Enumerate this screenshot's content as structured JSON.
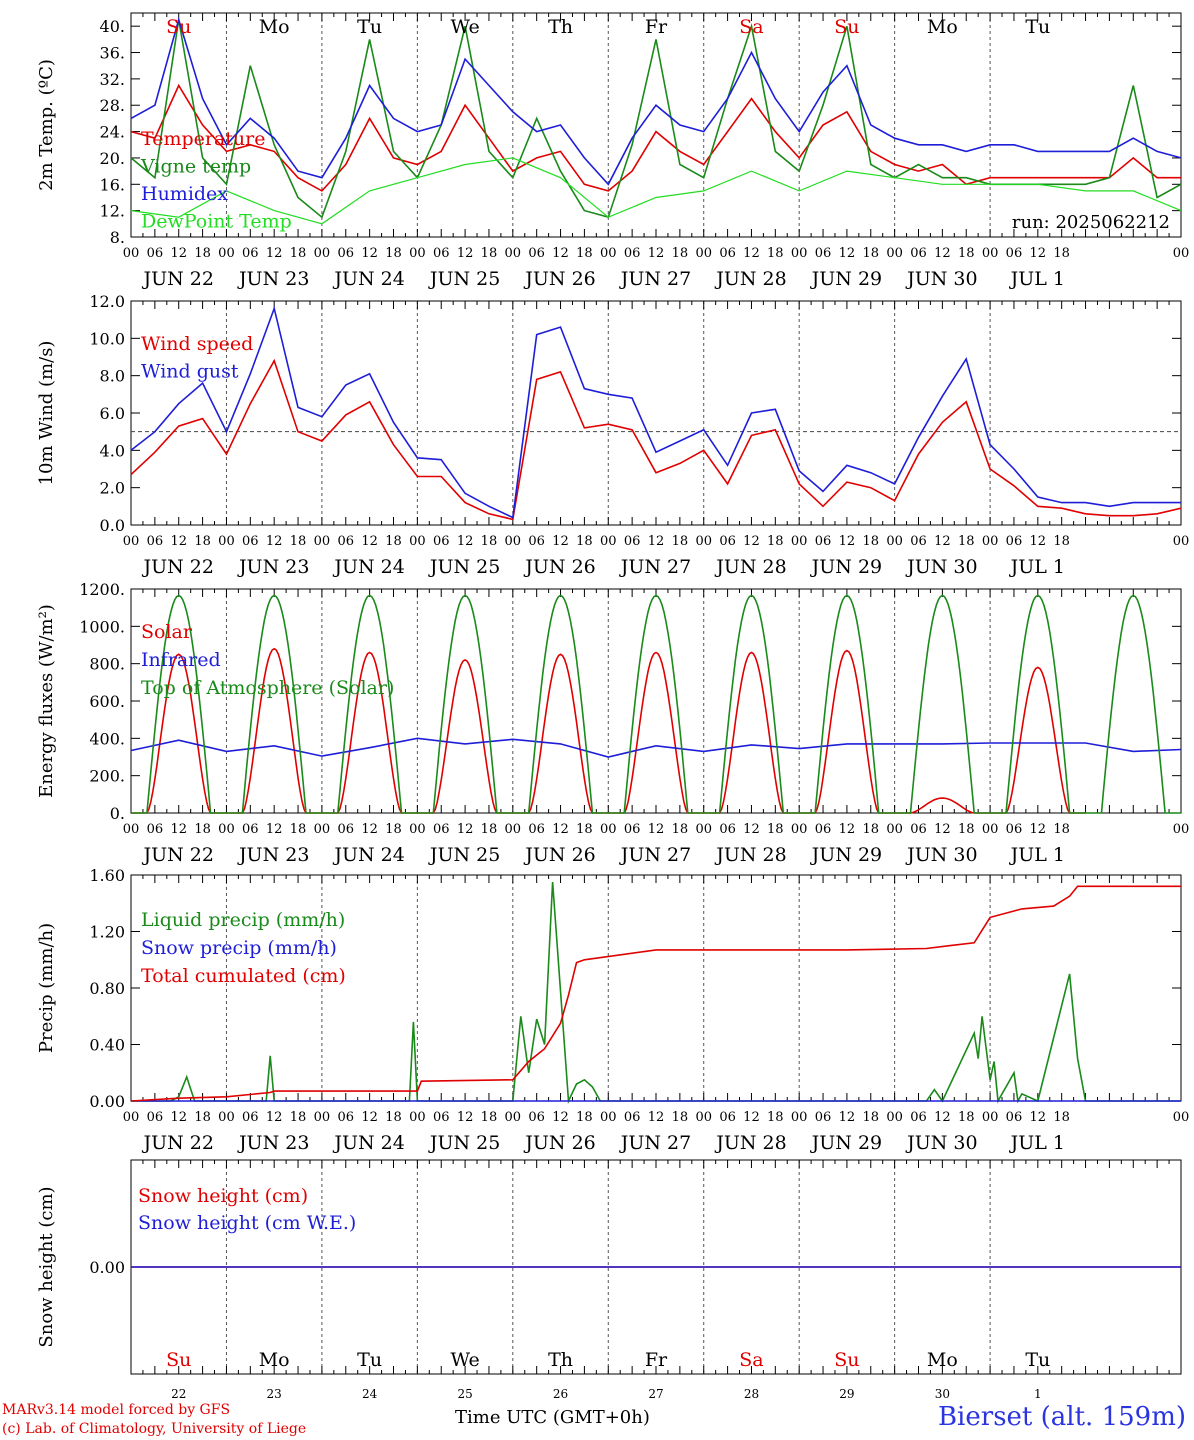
{
  "chart_data": {
    "type": "line",
    "station": "Bierset (alt. 159m)",
    "footer": {
      "model": "MARv3.14 model forced by GFS",
      "credit": "(c) Lab. of Climatology, University of Liege",
      "time_axis": "Time UTC (GMT+0h)"
    },
    "colors": {
      "red": "#e00000",
      "blue": "#1e1ed8",
      "green": "#1a8a1a",
      "lime": "#22dd22",
      "black": "#000000"
    },
    "hour_ticks": [
      "00",
      "06",
      "12",
      "18"
    ],
    "date_labels": [
      "JUN 22",
      "JUN 23",
      "JUN 24",
      "JUN 25",
      "JUN 26",
      "JUN 27",
      "JUN 28",
      "JUN 29",
      "JUN 30",
      "JUL  1"
    ],
    "day_names": [
      "Su",
      "Mo",
      "Tu",
      "We",
      "Th",
      "Fr",
      "Sa",
      "Su",
      "Mo",
      "Tu"
    ],
    "day_name_colors": [
      "#e00000",
      "#000000",
      "#000000",
      "#000000",
      "#000000",
      "#000000",
      "#e00000",
      "#e00000",
      "#000000",
      "#000000"
    ],
    "bottom_day_numbers": [
      "22",
      "23",
      "24",
      "25",
      "26",
      "27",
      "28",
      "29",
      "30",
      "1"
    ],
    "panels": [
      {
        "ylabel": "2m Temp. (ºC)",
        "ylim": [
          8,
          42
        ],
        "yticks": [
          "8.",
          "12.",
          "16.",
          "20.",
          "24.",
          "28.",
          "32.",
          "36.",
          "40."
        ],
        "annotation": "run: 2025062212",
        "series": [
          {
            "name": "Temperature",
            "color": "red",
            "x": [
              0,
              6,
              12,
              18,
              24,
              30,
              36,
              42,
              48,
              54,
              60,
              66,
              72,
              78,
              84,
              90,
              96,
              102,
              108,
              114,
              120,
              126,
              132,
              138,
              144,
              150,
              156,
              162,
              168,
              174,
              180,
              186,
              192,
              198,
              204,
              210,
              216,
              222,
              228,
              234,
              240,
              246,
              252,
              258,
              264
            ],
            "y": [
              24,
              23,
              31,
              25,
              21,
              22,
              21,
              17,
              15,
              19,
              26,
              20,
              19,
              21,
              28,
              23,
              18,
              20,
              21,
              16,
              15,
              18,
              24,
              21,
              19,
              24,
              29,
              24,
              20,
              25,
              27,
              21,
              19,
              18,
              19,
              16,
              17,
              17,
              17,
              17,
              17,
              17,
              20,
              17,
              17
            ]
          },
          {
            "name": "Vigne temp",
            "color": "green",
            "x": [
              0,
              6,
              12,
              18,
              24,
              30,
              36,
              42,
              48,
              54,
              60,
              66,
              72,
              78,
              84,
              90,
              96,
              102,
              108,
              114,
              120,
              126,
              132,
              138,
              144,
              150,
              156,
              162,
              168,
              174,
              180,
              186,
              192,
              198,
              204,
              210,
              216,
              222,
              228,
              234,
              240,
              246,
              252,
              258,
              264
            ],
            "y": [
              20,
              17,
              41,
              20,
              16,
              34,
              22,
              14,
              11,
              21,
              38,
              21,
              17,
              25,
              40,
              21,
              17,
              26,
              18,
              12,
              11,
              22,
              38,
              19,
              17,
              29,
              40,
              21,
              18,
              28,
              40,
              19,
              17,
              19,
              17,
              17,
              16,
              16,
              16,
              16,
              16,
              17,
              31,
              14,
              16
            ]
          },
          {
            "name": "Humidex",
            "color": "blue",
            "x": [
              0,
              6,
              12,
              18,
              24,
              30,
              36,
              42,
              48,
              54,
              60,
              66,
              72,
              78,
              84,
              90,
              96,
              102,
              108,
              114,
              120,
              126,
              132,
              138,
              144,
              150,
              156,
              162,
              168,
              174,
              180,
              186,
              192,
              198,
              204,
              210,
              216,
              222,
              228,
              234,
              240,
              246,
              252,
              258,
              264
            ],
            "y": [
              26,
              28,
              41,
              29,
              22,
              26,
              23,
              18,
              17,
              23,
              31,
              26,
              24,
              25,
              35,
              31,
              27,
              24,
              25,
              20,
              16,
              23,
              28,
              25,
              24,
              29,
              36,
              29,
              24,
              30,
              34,
              25,
              23,
              22,
              22,
              21,
              22,
              22,
              21,
              21,
              21,
              21,
              23,
              21,
              20
            ]
          },
          {
            "name": "DewPoint Temp",
            "color": "lime",
            "x": [
              0,
              12,
              24,
              36,
              48,
              60,
              72,
              84,
              96,
              108,
              120,
              132,
              144,
              156,
              168,
              180,
              192,
              204,
              216,
              228,
              240,
              252,
              264
            ],
            "y": [
              12,
              11,
              15,
              12,
              10,
              15,
              17,
              19,
              20,
              17,
              11,
              14,
              15,
              18,
              15,
              18,
              17,
              16,
              16,
              16,
              15,
              15,
              12
            ]
          }
        ]
      },
      {
        "ylabel": "10m Wind (m/s)",
        "ylim": [
          0,
          12
        ],
        "yticks": [
          "0.0",
          "2.0",
          "4.0",
          "6.0",
          "8.0",
          "10.0",
          "12.0"
        ],
        "reference_line": 5,
        "series": [
          {
            "name": "Wind speed",
            "color": "red",
            "x": [
              0,
              6,
              12,
              18,
              24,
              30,
              36,
              42,
              48,
              54,
              60,
              66,
              72,
              78,
              84,
              90,
              96,
              102,
              108,
              114,
              120,
              126,
              132,
              138,
              144,
              150,
              156,
              162,
              168,
              174,
              180,
              186,
              192,
              198,
              204,
              210,
              216,
              222,
              228,
              234,
              240,
              246,
              252,
              258,
              264
            ],
            "y": [
              2.7,
              3.9,
              5.3,
              5.7,
              3.8,
              6.5,
              8.8,
              5.0,
              4.5,
              5.9,
              6.6,
              4.3,
              2.6,
              2.6,
              1.2,
              0.6,
              0.3,
              7.8,
              8.2,
              5.2,
              5.4,
              5.1,
              2.8,
              3.3,
              4.0,
              2.2,
              4.8,
              5.1,
              2.2,
              1.0,
              2.3,
              2.0,
              1.3,
              3.8,
              5.5,
              6.6,
              3.0,
              2.1,
              1.0,
              0.9,
              0.6,
              0.5,
              0.5,
              0.6,
              0.9
            ]
          },
          {
            "name": "Wind gust",
            "color": "blue",
            "x": [
              0,
              6,
              12,
              18,
              24,
              30,
              36,
              42,
              48,
              54,
              60,
              66,
              72,
              78,
              84,
              90,
              96,
              102,
              108,
              114,
              120,
              126,
              132,
              138,
              144,
              150,
              156,
              162,
              168,
              174,
              180,
              186,
              192,
              198,
              204,
              210,
              216,
              222,
              228,
              234,
              240,
              246,
              252,
              258,
              264
            ],
            "y": [
              4.0,
              5.0,
              6.5,
              7.6,
              5.0,
              8.1,
              11.6,
              6.3,
              5.8,
              7.5,
              8.1,
              5.5,
              3.6,
              3.5,
              1.7,
              1.0,
              0.4,
              10.2,
              10.6,
              7.3,
              7.0,
              6.8,
              3.9,
              4.5,
              5.1,
              3.2,
              6.0,
              6.2,
              2.9,
              1.8,
              3.2,
              2.8,
              2.2,
              4.7,
              6.9,
              8.9,
              4.3,
              3.0,
              1.5,
              1.2,
              1.2,
              1.0,
              1.2,
              1.2,
              1.2
            ]
          }
        ]
      },
      {
        "ylabel": "Energy fluxes (W/m²)",
        "ylim": [
          0,
          1200
        ],
        "yticks": [
          "0.",
          "200.",
          "400.",
          "600.",
          "800.",
          "1000.",
          "1200."
        ],
        "series": [
          {
            "name": "Solar",
            "color": "red",
            "peaks": [
              850,
              880,
              860,
              820,
              850,
              860,
              860,
              870,
              80,
              780
            ]
          },
          {
            "name": "Infrared",
            "color": "blue",
            "x": [
              0,
              12,
              24,
              36,
              48,
              60,
              72,
              84,
              96,
              108,
              120,
              132,
              144,
              156,
              168,
              180,
              192,
              204,
              216,
              228,
              240,
              252,
              264
            ],
            "y": [
              335,
              390,
              330,
              360,
              305,
              350,
              400,
              370,
              395,
              370,
              300,
              360,
              330,
              365,
              345,
              370,
              370,
              370,
              375,
              375,
              375,
              330,
              340
            ]
          },
          {
            "name": "Top of Atmosphere (Solar)",
            "color": "green",
            "peak": 1165
          }
        ]
      },
      {
        "ylabel": "Precip (mm/h)",
        "ylim": [
          0,
          1.6
        ],
        "yticks": [
          "0.00",
          "0.40",
          "0.80",
          "1.20",
          "1.60"
        ],
        "series": [
          {
            "name": "Liquid precip (mm/h)",
            "color": "green",
            "x": [
              0,
              10,
              12,
              14,
              16,
              34,
              35,
              36,
              48,
              70,
              71,
              72,
              96,
              98,
              100,
              102,
              104,
              106,
              110,
              112,
              114,
              116,
              118,
              120,
              124,
              128,
              132,
              200,
              202,
              204,
              212,
              213,
              214,
              216,
              217,
              218,
              222,
              223,
              224,
              228,
              236,
              238,
              240,
              244,
              248,
              264
            ],
            "y": [
              0,
              0,
              0.03,
              0.17,
              0,
              0,
              0.32,
              0,
              0,
              0,
              0.56,
              0,
              0,
              0.6,
              0.2,
              0.58,
              0.4,
              1.55,
              0,
              0.12,
              0.15,
              0.1,
              0,
              0,
              0,
              0,
              0,
              0,
              0.08,
              0,
              0.48,
              0.3,
              0.6,
              0.15,
              0.28,
              0,
              0.2,
              0,
              0.05,
              0,
              0.9,
              0.3,
              0,
              0,
              0,
              0
            ]
          },
          {
            "name": "Snow precip (mm/h)",
            "color": "blue",
            "x": [
              0,
              264
            ],
            "y": [
              0,
              0
            ]
          },
          {
            "name": "Total cumulated (cm)",
            "color": "red",
            "x": [
              0,
              12,
              24,
              35,
              36,
              72,
              73,
              96,
              100,
              104,
              108,
              110,
              112,
              114,
              132,
              168,
              180,
              200,
              206,
              212,
              216,
              224,
              232,
              236,
              238,
              240,
              264
            ],
            "y": [
              0,
              0.02,
              0.03,
              0.06,
              0.07,
              0.07,
              0.14,
              0.15,
              0.28,
              0.37,
              0.55,
              0.75,
              0.98,
              1.0,
              1.07,
              1.07,
              1.07,
              1.08,
              1.1,
              1.12,
              1.3,
              1.36,
              1.38,
              1.45,
              1.52,
              1.52,
              1.52
            ]
          }
        ]
      },
      {
        "ylabel": "Snow height (cm)",
        "ylim": [
          -1,
          1
        ],
        "yticks": [
          "0.00"
        ],
        "series": [
          {
            "name": "Snow height (cm)",
            "color": "red",
            "x": [
              0,
              264
            ],
            "y": [
              0,
              0
            ]
          },
          {
            "name": "Snow height (cm W.E.)",
            "color": "blue",
            "x": [
              0,
              264
            ],
            "y": [
              0,
              0
            ]
          }
        ]
      }
    ]
  }
}
